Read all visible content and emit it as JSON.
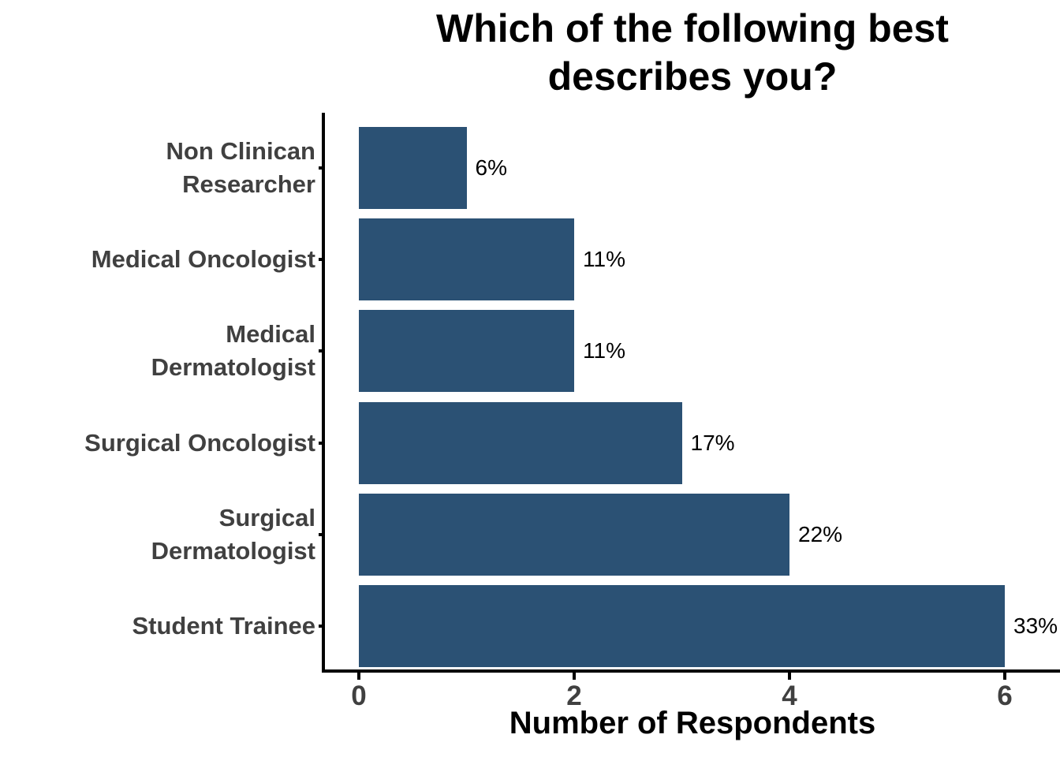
{
  "chart_data": {
    "type": "bar",
    "orientation": "horizontal",
    "title": "Which of the following best describes you?",
    "title_lines": [
      "Which of the following best",
      "describes you?"
    ],
    "categories": [
      "Non Clinican Researcher",
      "Medical Oncologist",
      "Medical Dermatologist",
      "Surgical Oncologist",
      "Surgical Dermatologist",
      "Student Trainee"
    ],
    "category_lines": [
      [
        "Non Clinican",
        "Researcher"
      ],
      [
        "Medical Oncologist"
      ],
      [
        "Medical",
        "Dermatologist"
      ],
      [
        "Surgical Oncologist"
      ],
      [
        "Surgical",
        "Dermatologist"
      ],
      [
        "Student Trainee"
      ]
    ],
    "values": [
      1,
      2,
      2,
      3,
      4,
      6
    ],
    "bar_labels": [
      "6%",
      "11%",
      "17%",
      "22%",
      "33%"
    ],
    "bar_labels_full": [
      "6%",
      "11%",
      "11%",
      "17%",
      "22%",
      "33%"
    ],
    "xlabel": "Number of Respondents",
    "x_ticks": [
      0,
      2,
      4,
      6
    ],
    "xlim": [
      0,
      6.5
    ],
    "grid": false,
    "legend": false,
    "colors": {
      "bar": "#2b5174",
      "axis_line": "#000000",
      "tick_text": "#404040",
      "category_text": "#404040",
      "title_text": "#000000",
      "value_text": "#000000",
      "background": "#ffffff"
    }
  }
}
